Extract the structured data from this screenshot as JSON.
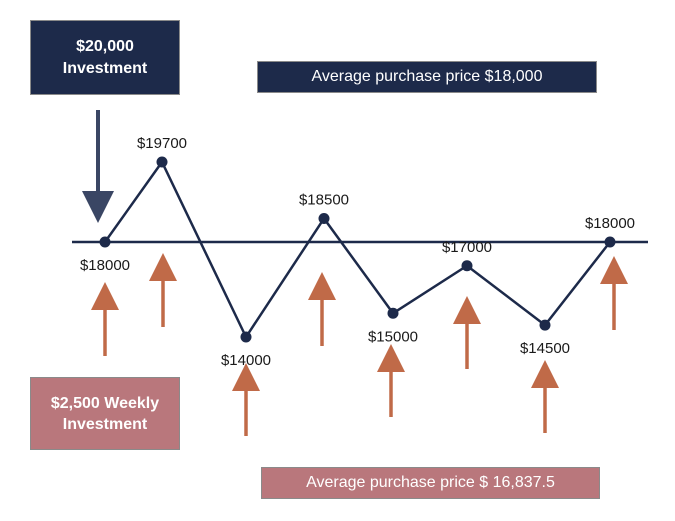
{
  "lump_sum_box": {
    "line1": "$20,000",
    "line2": "Investment"
  },
  "weekly_box": {
    "line1": "$2,500 Weekly",
    "line2": "Investment"
  },
  "avg_price_top": "Average purchase price $18,000",
  "avg_price_bottom": "Average purchase price $ 16,837.5",
  "colors": {
    "navy": "#1d2a4a",
    "rose": "#b9777c",
    "arrow_rust": "#c06a48",
    "arrow_navy": "#3a4664"
  },
  "chart_data": {
    "type": "line",
    "series": [
      {
        "values": [
          18000,
          19700,
          14000,
          18500,
          15000,
          17000,
          14500,
          18000
        ]
      }
    ],
    "point_labels": [
      "$18000",
      "$19700",
      "$14000",
      "$18500",
      "$15000",
      "$17000",
      "$14500",
      "$18000"
    ],
    "reference_line": 18000
  }
}
